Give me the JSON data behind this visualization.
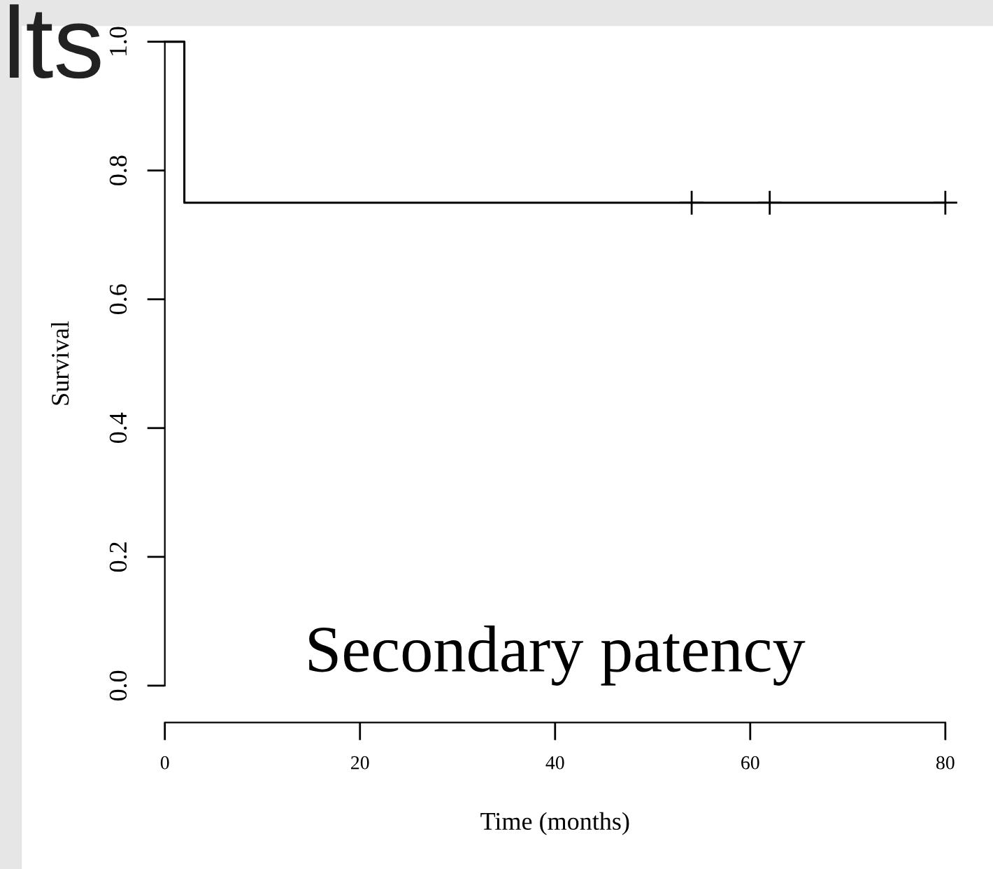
{
  "chart_data": {
    "type": "step",
    "xlabel": "Time (months)",
    "ylabel": "Survival",
    "xlim": [
      0,
      80
    ],
    "xticks": [
      0,
      20,
      40,
      60,
      80
    ],
    "ylim": [
      0,
      1
    ],
    "yticks": [
      {
        "value": 0,
        "label": "0.0"
      },
      {
        "value": 0.2,
        "label": "0.2"
      },
      {
        "value": 0.4,
        "label": "0.4"
      },
      {
        "value": 0.6,
        "label": "0.6"
      },
      {
        "value": 0.8,
        "label": "0.8"
      },
      {
        "value": 1,
        "label": "1.0"
      }
    ],
    "grid": false,
    "legend": false,
    "series": [
      {
        "color": "#000000",
        "x": [
          0,
          2,
          54,
          62,
          80
        ],
        "values": [
          1,
          0.75,
          0.75,
          0.75,
          0.75
        ],
        "marker": "none"
      },
      {
        "type": "scatter",
        "color": "#000000",
        "x": [
          54,
          62,
          80
        ],
        "values": [
          0.75,
          0.75,
          0.75
        ],
        "marker": "cross"
      }
    ],
    "annotations": [
      "lts",
      "Secondary patency"
    ]
  }
}
